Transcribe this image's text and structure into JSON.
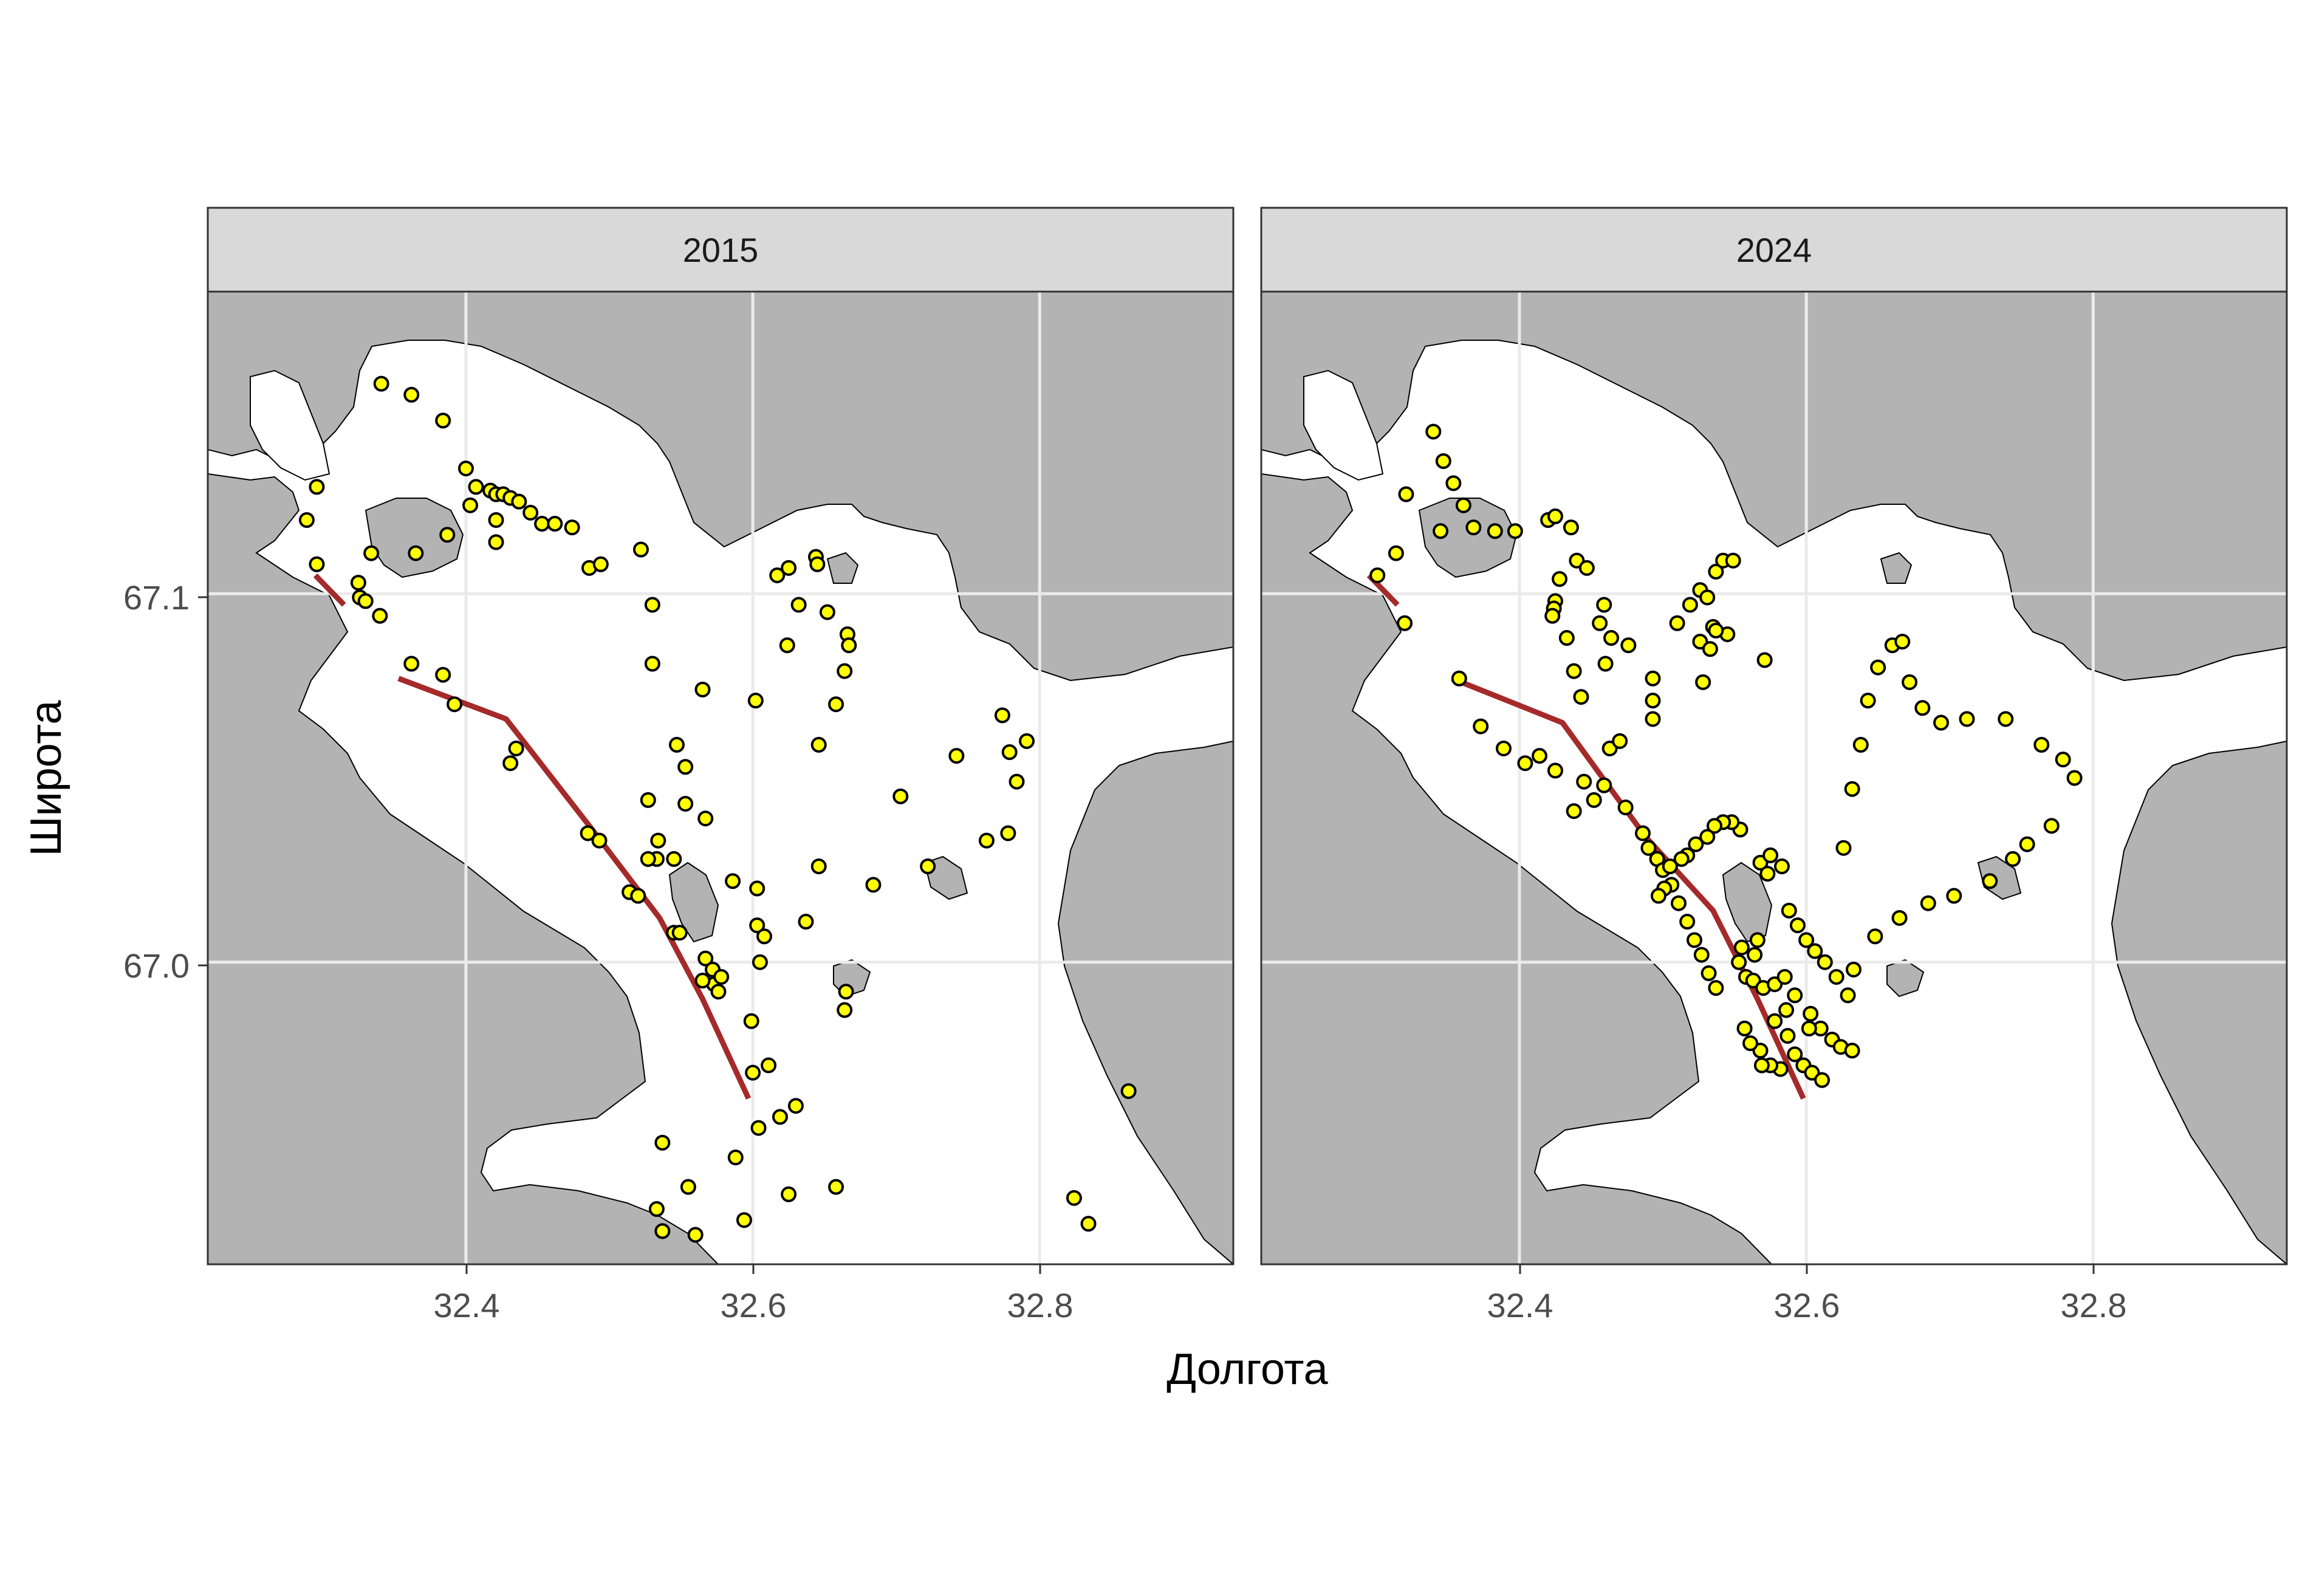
{
  "colors": {
    "land": "#b3b3b3",
    "water": "#ffffff",
    "strip_bg": "#d9d9d9",
    "grid": "#ebebeb",
    "route": "#a52a2a",
    "point_fill": "#ffff00",
    "point_stroke": "#000000"
  },
  "axes": {
    "xlabel": "Долгота",
    "ylabel": "Широта",
    "x_ticks": [
      "32.4",
      "32.6",
      "32.8"
    ],
    "y_ticks": [
      "67.1",
      "67.0"
    ]
  },
  "chart_data": {
    "type": "scatter",
    "x_range": [
      32.22,
      32.935
    ],
    "y_range": [
      66.918,
      67.182
    ],
    "x_ticks": [
      32.4,
      32.6,
      32.8
    ],
    "y_ticks": [
      67.0,
      67.1
    ],
    "grid": true,
    "panels": [
      {
        "label": "2015",
        "route": [
          [
            [
              32.295,
              67.105
            ],
            [
              32.315,
              67.097
            ]
          ],
          [
            [
              32.353,
              67.077
            ],
            [
              32.428,
              67.066
            ],
            [
              32.488,
              67.036
            ],
            [
              32.535,
              67.012
            ],
            [
              32.565,
              66.99
            ],
            [
              32.597,
              66.963
            ]
          ]
        ],
        "points": [
          [
            32.341,
            67.157
          ],
          [
            32.362,
            67.154
          ],
          [
            32.384,
            67.147
          ],
          [
            32.4,
            67.134
          ],
          [
            32.407,
            67.129
          ],
          [
            32.417,
            67.128
          ],
          [
            32.421,
            67.127
          ],
          [
            32.426,
            67.127
          ],
          [
            32.431,
            67.126
          ],
          [
            32.437,
            67.125
          ],
          [
            32.445,
            67.122
          ],
          [
            32.453,
            67.119
          ],
          [
            32.462,
            67.119
          ],
          [
            32.474,
            67.118
          ],
          [
            32.403,
            67.124
          ],
          [
            32.421,
            67.12
          ],
          [
            32.421,
            67.114
          ],
          [
            32.387,
            67.116
          ],
          [
            32.365,
            67.111
          ],
          [
            32.296,
            67.129
          ],
          [
            32.289,
            67.12
          ],
          [
            32.296,
            67.108
          ],
          [
            32.325,
            67.103
          ],
          [
            32.334,
            67.111
          ],
          [
            32.326,
            67.099
          ],
          [
            32.33,
            67.098
          ],
          [
            32.34,
            67.094
          ],
          [
            32.486,
            67.107
          ],
          [
            32.494,
            67.108
          ],
          [
            32.522,
            67.112
          ],
          [
            32.53,
            67.097
          ],
          [
            32.362,
            67.081
          ],
          [
            32.384,
            67.078
          ],
          [
            32.392,
            67.07
          ],
          [
            32.431,
            67.054
          ],
          [
            32.435,
            67.058
          ],
          [
            32.53,
            67.081
          ],
          [
            32.565,
            67.074
          ],
          [
            32.602,
            67.071
          ],
          [
            32.547,
            67.059
          ],
          [
            32.553,
            67.053
          ],
          [
            32.527,
            67.044
          ],
          [
            32.553,
            67.043
          ],
          [
            32.567,
            67.039
          ],
          [
            32.617,
            67.105
          ],
          [
            32.625,
            67.107
          ],
          [
            32.644,
            67.11
          ],
          [
            32.645,
            67.108
          ],
          [
            32.632,
            67.097
          ],
          [
            32.652,
            67.095
          ],
          [
            32.666,
            67.089
          ],
          [
            32.667,
            67.086
          ],
          [
            32.624,
            67.086
          ],
          [
            32.664,
            67.079
          ],
          [
            32.658,
            67.07
          ],
          [
            32.646,
            67.059
          ],
          [
            32.485,
            67.035
          ],
          [
            32.493,
            67.033
          ],
          [
            32.534,
            67.033
          ],
          [
            32.533,
            67.028
          ],
          [
            32.527,
            67.028
          ],
          [
            32.545,
            67.028
          ],
          [
            32.703,
            67.045
          ],
          [
            32.742,
            67.056
          ],
          [
            32.722,
            67.026
          ],
          [
            32.684,
            67.021
          ],
          [
            32.646,
            67.026
          ],
          [
            32.586,
            67.022
          ],
          [
            32.603,
            67.02
          ],
          [
            32.514,
            67.019
          ],
          [
            32.52,
            67.018
          ],
          [
            32.603,
            67.01
          ],
          [
            32.608,
            67.007
          ],
          [
            32.637,
            67.011
          ],
          [
            32.545,
            67.008
          ],
          [
            32.549,
            67.008
          ],
          [
            32.567,
            67.001
          ],
          [
            32.572,
            66.998
          ],
          [
            32.605,
            67.0
          ],
          [
            32.573,
            66.994
          ],
          [
            32.565,
            66.995
          ],
          [
            32.578,
            66.996
          ],
          [
            32.576,
            66.992
          ],
          [
            32.665,
            66.992
          ],
          [
            32.664,
            66.987
          ],
          [
            32.599,
            66.984
          ],
          [
            32.6,
            66.97
          ],
          [
            32.611,
            66.972
          ],
          [
            32.63,
            66.961
          ],
          [
            32.619,
            66.958
          ],
          [
            32.604,
            66.955
          ],
          [
            32.537,
            66.951
          ],
          [
            32.588,
            66.947
          ],
          [
            32.555,
            66.939
          ],
          [
            32.533,
            66.933
          ],
          [
            32.537,
            66.927
          ],
          [
            32.56,
            66.926
          ],
          [
            32.594,
            66.93
          ],
          [
            32.625,
            66.937
          ],
          [
            32.658,
            66.939
          ],
          [
            32.774,
            67.067
          ],
          [
            32.791,
            67.06
          ],
          [
            32.779,
            67.057
          ],
          [
            32.784,
            67.049
          ],
          [
            32.763,
            67.033
          ],
          [
            32.778,
            67.035
          ],
          [
            32.862,
            66.965
          ],
          [
            32.824,
            66.936
          ],
          [
            32.834,
            66.929
          ]
        ]
      },
      {
        "label": "2024",
        "route": [
          [
            [
              32.295,
              67.105
            ],
            [
              32.315,
              67.097
            ]
          ],
          [
            [
              32.353,
              67.077
            ],
            [
              32.43,
              67.065
            ],
            [
              32.488,
              67.034
            ],
            [
              32.535,
              67.014
            ],
            [
              32.566,
              66.99
            ],
            [
              32.598,
              66.963
            ]
          ]
        ],
        "points": [
          [
            32.34,
            67.144
          ],
          [
            32.347,
            67.136
          ],
          [
            32.354,
            67.13
          ],
          [
            32.361,
            67.124
          ],
          [
            32.368,
            67.118
          ],
          [
            32.383,
            67.117
          ],
          [
            32.397,
            67.117
          ],
          [
            32.42,
            67.12
          ],
          [
            32.425,
            67.121
          ],
          [
            32.436,
            67.118
          ],
          [
            32.321,
            67.127
          ],
          [
            32.301,
            67.105
          ],
          [
            32.314,
            67.111
          ],
          [
            32.345,
            67.117
          ],
          [
            32.32,
            67.092
          ],
          [
            32.428,
            67.104
          ],
          [
            32.425,
            67.098
          ],
          [
            32.424,
            67.096
          ],
          [
            32.423,
            67.094
          ],
          [
            32.44,
            67.109
          ],
          [
            32.447,
            67.107
          ],
          [
            32.433,
            67.088
          ],
          [
            32.438,
            67.079
          ],
          [
            32.443,
            67.072
          ],
          [
            32.459,
            67.097
          ],
          [
            32.456,
            67.092
          ],
          [
            32.464,
            67.088
          ],
          [
            32.46,
            67.081
          ],
          [
            32.476,
            67.086
          ],
          [
            32.493,
            67.077
          ],
          [
            32.493,
            67.071
          ],
          [
            32.493,
            67.066
          ],
          [
            32.51,
            67.092
          ],
          [
            32.519,
            67.097
          ],
          [
            32.526,
            67.101
          ],
          [
            32.537,
            67.106
          ],
          [
            32.542,
            67.109
          ],
          [
            32.549,
            67.109
          ],
          [
            32.531,
            67.099
          ],
          [
            32.535,
            67.091
          ],
          [
            32.526,
            67.087
          ],
          [
            32.533,
            67.085
          ],
          [
            32.545,
            67.089
          ],
          [
            32.537,
            67.09
          ],
          [
            32.571,
            67.082
          ],
          [
            32.528,
            67.076
          ],
          [
            32.445,
            67.049
          ],
          [
            32.459,
            67.048
          ],
          [
            32.474,
            67.042
          ],
          [
            32.486,
            67.035
          ],
          [
            32.49,
            67.031
          ],
          [
            32.496,
            67.028
          ],
          [
            32.5,
            67.025
          ],
          [
            32.506,
            67.021
          ],
          [
            32.511,
            67.016
          ],
          [
            32.517,
            67.011
          ],
          [
            32.522,
            67.006
          ],
          [
            32.527,
            67.002
          ],
          [
            32.532,
            66.997
          ],
          [
            32.537,
            66.993
          ],
          [
            32.358,
            67.077
          ],
          [
            32.373,
            67.064
          ],
          [
            32.389,
            67.058
          ],
          [
            32.404,
            67.054
          ],
          [
            32.414,
            67.056
          ],
          [
            32.425,
            67.052
          ],
          [
            32.438,
            67.041
          ],
          [
            32.452,
            67.044
          ],
          [
            32.463,
            67.058
          ],
          [
            32.47,
            67.06
          ],
          [
            32.554,
            67.036
          ],
          [
            32.548,
            67.038
          ],
          [
            32.542,
            67.038
          ],
          [
            32.536,
            67.037
          ],
          [
            32.531,
            67.034
          ],
          [
            32.523,
            67.032
          ],
          [
            32.517,
            67.029
          ],
          [
            32.513,
            67.028
          ],
          [
            32.505,
            67.026
          ],
          [
            32.501,
            67.02
          ],
          [
            32.497,
            67.018
          ],
          [
            32.568,
            67.027
          ],
          [
            32.575,
            67.029
          ],
          [
            32.583,
            67.026
          ],
          [
            32.573,
            67.024
          ],
          [
            32.588,
            67.014
          ],
          [
            32.594,
            67.01
          ],
          [
            32.6,
            67.006
          ],
          [
            32.606,
            67.003
          ],
          [
            32.613,
            67.0
          ],
          [
            32.621,
            66.996
          ],
          [
            32.629,
            66.991
          ],
          [
            32.633,
            66.998
          ],
          [
            32.566,
            67.006
          ],
          [
            32.564,
            67.002
          ],
          [
            32.555,
            67.004
          ],
          [
            32.553,
            67.0
          ],
          [
            32.558,
            66.996
          ],
          [
            32.563,
            66.995
          ],
          [
            32.57,
            66.993
          ],
          [
            32.578,
            66.994
          ],
          [
            32.585,
            66.996
          ],
          [
            32.592,
            66.991
          ],
          [
            32.603,
            66.986
          ],
          [
            32.61,
            66.982
          ],
          [
            32.618,
            66.979
          ],
          [
            32.624,
            66.977
          ],
          [
            32.632,
            66.976
          ],
          [
            32.578,
            66.984
          ],
          [
            32.586,
            66.987
          ],
          [
            32.587,
            66.98
          ],
          [
            32.592,
            66.975
          ],
          [
            32.598,
            66.972
          ],
          [
            32.604,
            66.97
          ],
          [
            32.611,
            66.968
          ],
          [
            32.582,
            66.971
          ],
          [
            32.575,
            66.972
          ],
          [
            32.569,
            66.972
          ],
          [
            32.568,
            66.976
          ],
          [
            32.561,
            66.978
          ],
          [
            32.557,
            66.982
          ],
          [
            32.602,
            66.982
          ],
          [
            32.643,
            67.071
          ],
          [
            32.65,
            67.08
          ],
          [
            32.66,
            67.086
          ],
          [
            32.667,
            67.087
          ],
          [
            32.672,
            67.076
          ],
          [
            32.681,
            67.069
          ],
          [
            32.694,
            67.065
          ],
          [
            32.712,
            67.066
          ],
          [
            32.739,
            67.066
          ],
          [
            32.764,
            67.059
          ],
          [
            32.779,
            67.055
          ],
          [
            32.787,
            67.05
          ],
          [
            32.771,
            67.037
          ],
          [
            32.754,
            67.032
          ],
          [
            32.744,
            67.028
          ],
          [
            32.728,
            67.022
          ],
          [
            32.703,
            67.018
          ],
          [
            32.685,
            67.016
          ],
          [
            32.665,
            67.012
          ],
          [
            32.648,
            67.007
          ],
          [
            32.626,
            67.031
          ],
          [
            32.632,
            67.047
          ],
          [
            32.638,
            67.059
          ]
        ]
      }
    ]
  }
}
